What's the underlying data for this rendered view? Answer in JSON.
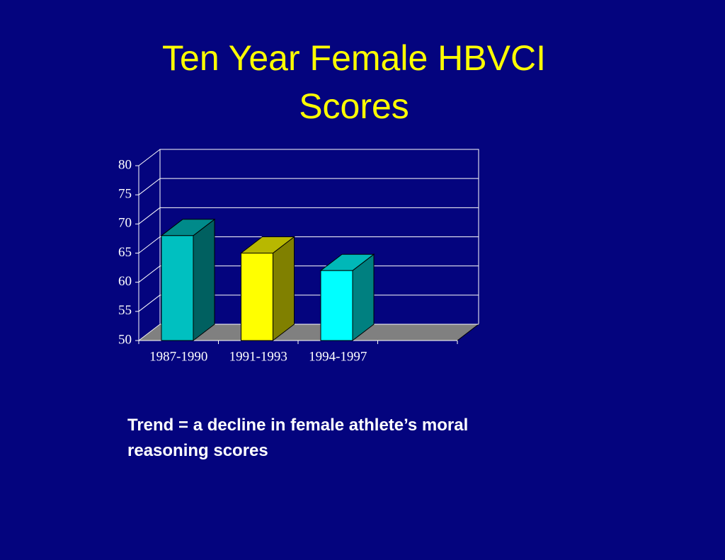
{
  "chart_data": {
    "type": "bar3d",
    "title": "Ten Year Female HBVCI Scores",
    "categories": [
      "1987-1990",
      "1991-1993",
      "1994-1997",
      null
    ],
    "values": [
      68,
      65,
      62,
      null
    ],
    "colors": [
      "#00c0c0",
      "#ffff00",
      "#00ffff",
      null
    ],
    "ylim": [
      50,
      80
    ],
    "yticks": [
      50,
      55,
      60,
      65,
      70,
      75,
      80
    ],
    "grid": true,
    "annotation": "Trend = a decline in female athlete’s moral reasoning scores"
  }
}
